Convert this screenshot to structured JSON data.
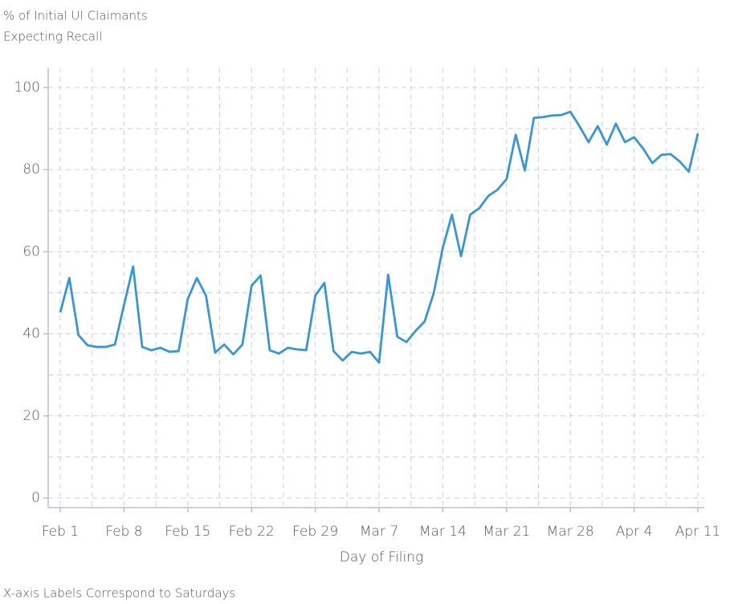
{
  "chart_data": {
    "type": "line",
    "y_label": [
      "% of Initial UI Claimants",
      "Expecting Recall"
    ],
    "x_label": "Day of Filing",
    "note": "X-axis Labels Correspond to Saturdays",
    "categories": [
      "Feb 1",
      null,
      null,
      null,
      null,
      null,
      null,
      "Feb 8",
      null,
      null,
      null,
      null,
      null,
      null,
      "Feb 15",
      null,
      null,
      null,
      null,
      null,
      null,
      "Feb 22",
      null,
      null,
      null,
      null,
      null,
      null,
      "Feb 29",
      null,
      null,
      null,
      null,
      null,
      null,
      "Mar 7",
      null,
      null,
      null,
      null,
      null,
      null,
      "Mar 14",
      null,
      null,
      null,
      null,
      null,
      null,
      "Mar 21",
      null,
      null,
      null,
      null,
      null,
      null,
      "Mar 28",
      null,
      null,
      null,
      null,
      null,
      null,
      "Apr 4",
      null,
      null,
      null,
      null,
      null,
      null,
      "Apr 11"
    ],
    "series": [
      {
        "name": null,
        "color": "#3a95d1",
        "values": [
          45.2,
          53.6,
          39.7,
          37.2,
          36.8,
          36.8,
          37.4,
          47,
          56.4,
          36.8,
          36,
          36.6,
          35.6,
          35.8,
          48.5,
          53.6,
          49.3,
          35.4,
          37.4,
          35,
          37.4,
          51.7,
          54.2,
          36,
          35.2,
          36.6,
          36.2,
          36,
          49.3,
          52.4,
          35.8,
          33.5,
          35.6,
          35.2,
          35.6,
          33,
          54.4,
          39.3,
          38,
          40.7,
          43,
          49.9,
          61,
          69,
          58.9,
          69,
          70.6,
          73.6,
          75.1,
          77.7,
          88.5,
          79.8,
          92.6,
          92.8,
          93.2,
          93.3,
          94.1,
          90.6,
          86.7,
          90.6,
          86.1,
          91.2,
          86.7,
          87.9,
          85.1,
          81.6,
          83.6,
          83.8,
          82,
          79.5,
          88.8
        ]
      }
    ],
    "ylim": [
      0,
      100
    ],
    "yticks": [
      0,
      20,
      40,
      60,
      80,
      100
    ],
    "grid": true
  }
}
